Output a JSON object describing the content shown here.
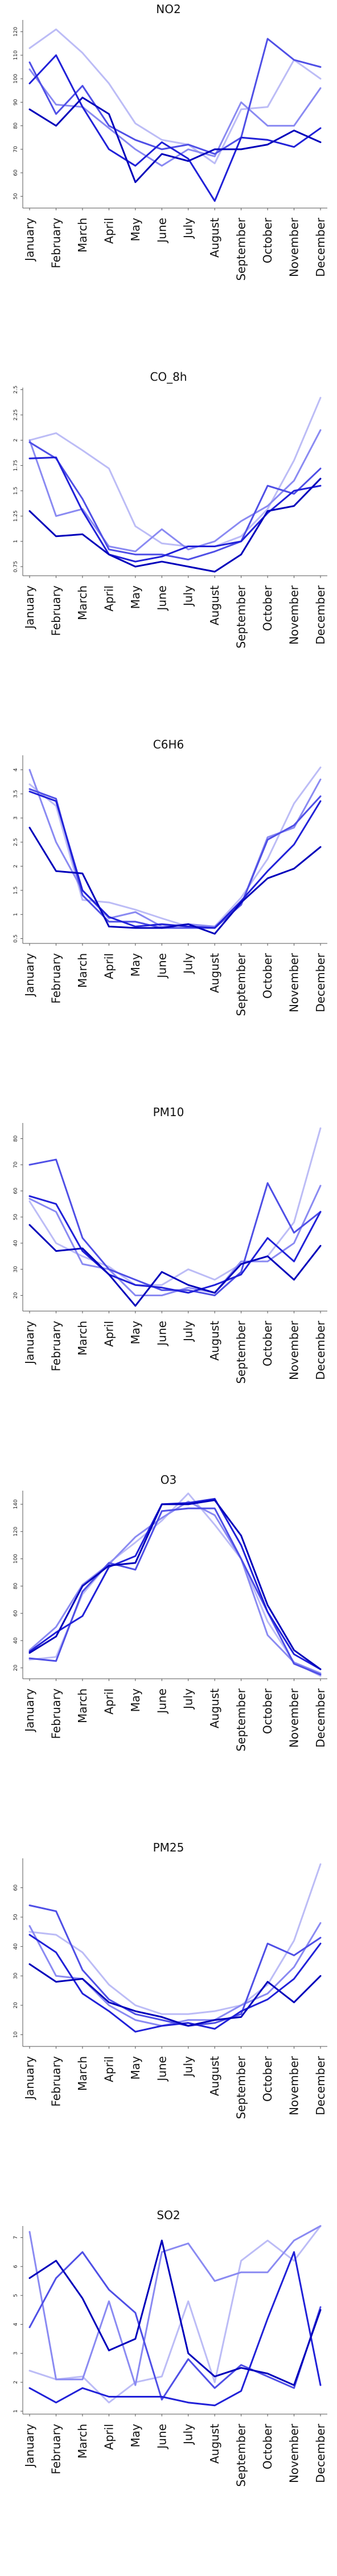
{
  "months": [
    "January",
    "February",
    "March",
    "April",
    "May",
    "June",
    "July",
    "August",
    "September",
    "October",
    "November",
    "December"
  ],
  "series_colors": [
    "#bcbcf6",
    "#8a8af2",
    "#4f4fe6",
    "#2121d8",
    "#0000bb"
  ],
  "chart_data": [
    {
      "type": "line",
      "title": "NO2",
      "categories": [
        "January",
        "February",
        "March",
        "April",
        "May",
        "June",
        "July",
        "August",
        "September",
        "October",
        "November",
        "December"
      ],
      "ylim": [
        45,
        125
      ],
      "yticks": [
        50,
        60,
        70,
        80,
        90,
        100,
        110,
        120
      ],
      "series": [
        {
          "values": [
            113,
            121,
            111,
            98,
            81,
            74,
            72,
            64,
            87,
            88,
            108,
            100
          ]
        },
        {
          "values": [
            104,
            89,
            88,
            79,
            70,
            63,
            70,
            67,
            90,
            80,
            80,
            96
          ]
        },
        {
          "values": [
            107,
            85,
            97,
            80,
            74,
            70,
            72,
            68,
            75,
            117,
            108,
            105
          ]
        },
        {
          "values": [
            98,
            110,
            88,
            70,
            63,
            73,
            66,
            48,
            75,
            74,
            71,
            79
          ]
        },
        {
          "values": [
            87,
            80,
            92,
            85,
            56,
            68,
            65,
            70,
            70,
            72,
            78,
            73
          ]
        }
      ]
    },
    {
      "type": "line",
      "title": "CO_8h",
      "categories": [
        "January",
        "February",
        "March",
        "April",
        "May",
        "June",
        "July",
        "August",
        "September",
        "October",
        "November",
        "December"
      ],
      "ylim": [
        0.66,
        2.52
      ],
      "yticks": [
        0.75,
        1.0,
        1.25,
        1.5,
        1.75,
        2.0,
        2.25,
        2.5
      ],
      "series": [
        {
          "values": [
            2.0,
            2.07,
            1.9,
            1.72,
            1.15,
            0.98,
            0.95,
            0.95,
            1.05,
            1.32,
            1.8,
            2.42
          ]
        },
        {
          "values": [
            2.0,
            1.25,
            1.32,
            0.95,
            0.9,
            1.12,
            0.92,
            1.0,
            1.2,
            1.35,
            1.6,
            2.1
          ]
        },
        {
          "values": [
            1.98,
            1.82,
            1.42,
            0.92,
            0.87,
            0.87,
            0.82,
            0.9,
            1.0,
            1.55,
            1.47,
            1.72
          ]
        },
        {
          "values": [
            1.82,
            1.83,
            1.3,
            0.87,
            0.8,
            0.85,
            0.95,
            0.95,
            1.0,
            1.28,
            1.5,
            1.55
          ]
        },
        {
          "values": [
            1.3,
            1.05,
            1.07,
            0.87,
            0.75,
            0.8,
            0.75,
            0.7,
            0.87,
            1.3,
            1.35,
            1.62
          ]
        }
      ]
    },
    {
      "type": "line",
      "title": "C6H6",
      "categories": [
        "January",
        "February",
        "March",
        "April",
        "May",
        "June",
        "July",
        "August",
        "September",
        "October",
        "November",
        "December"
      ],
      "ylim": [
        0.4,
        4.3
      ],
      "yticks": [
        0.5,
        1.0,
        1.5,
        2.0,
        2.5,
        3.0,
        3.5,
        4.0
      ],
      "series": [
        {
          "values": [
            3.7,
            3.25,
            1.3,
            1.25,
            1.1,
            0.92,
            0.75,
            0.75,
            1.35,
            2.15,
            3.3,
            4.05
          ]
        },
        {
          "values": [
            4.0,
            2.5,
            1.5,
            0.92,
            1.05,
            0.75,
            0.8,
            0.75,
            1.2,
            2.6,
            2.8,
            3.8
          ]
        },
        {
          "values": [
            3.6,
            3.4,
            1.4,
            0.85,
            0.85,
            0.72,
            0.72,
            0.72,
            1.2,
            2.55,
            2.85,
            3.45
          ]
        },
        {
          "values": [
            3.55,
            3.35,
            1.5,
            0.95,
            0.75,
            0.8,
            0.75,
            0.72,
            1.28,
            1.9,
            2.45,
            3.35
          ]
        },
        {
          "values": [
            2.8,
            1.9,
            1.85,
            0.75,
            0.72,
            0.72,
            0.8,
            0.6,
            1.25,
            1.75,
            1.95,
            2.4
          ]
        }
      ]
    },
    {
      "type": "line",
      "title": "PM10",
      "categories": [
        "January",
        "February",
        "March",
        "April",
        "May",
        "June",
        "July",
        "August",
        "September",
        "October",
        "November",
        "December"
      ],
      "ylim": [
        14,
        86
      ],
      "yticks": [
        20,
        30,
        40,
        50,
        60,
        70,
        80
      ],
      "series": [
        {
          "values": [
            56,
            40,
            35,
            31,
            24,
            24,
            30,
            26,
            32,
            35,
            48,
            84
          ]
        },
        {
          "values": [
            57,
            52,
            32,
            30,
            20,
            20,
            23,
            21,
            33,
            33,
            40,
            62
          ]
        },
        {
          "values": [
            70,
            72,
            42,
            30,
            26,
            22,
            22,
            20,
            29,
            63,
            44,
            52
          ]
        },
        {
          "values": [
            58,
            55,
            37,
            28,
            24,
            23,
            21,
            24,
            28,
            42,
            33,
            52
          ]
        },
        {
          "values": [
            47,
            37,
            38,
            28,
            16,
            29,
            24,
            21,
            32,
            35,
            26,
            39
          ]
        }
      ]
    },
    {
      "type": "line",
      "title": "O3",
      "categories": [
        "January",
        "February",
        "March",
        "April",
        "May",
        "June",
        "July",
        "August",
        "September",
        "October",
        "November",
        "December"
      ],
      "ylim": [
        12,
        150
      ],
      "yticks": [
        20,
        40,
        60,
        80,
        100,
        120,
        140
      ],
      "series": [
        {
          "values": [
            26,
            28,
            74,
            97,
            112,
            128,
            148,
            125,
            100,
            54,
            24,
            14
          ]
        },
        {
          "values": [
            33,
            50,
            81,
            96,
            116,
            130,
            142,
            132,
            100,
            44,
            24,
            16
          ]
        },
        {
          "values": [
            27,
            25,
            76,
            97,
            92,
            135,
            137,
            137,
            100,
            61,
            23,
            15
          ]
        },
        {
          "values": [
            32,
            46,
            58,
            94,
            102,
            140,
            141,
            144,
            110,
            61,
            30,
            19
          ]
        },
        {
          "values": [
            31,
            43,
            80,
            95,
            97,
            140,
            140,
            143,
            117,
            66,
            33,
            19
          ]
        }
      ]
    },
    {
      "type": "line",
      "title": "PM25",
      "categories": [
        "January",
        "February",
        "March",
        "April",
        "May",
        "June",
        "July",
        "August",
        "September",
        "October",
        "November",
        "December"
      ],
      "ylim": [
        6,
        70
      ],
      "yticks": [
        10,
        20,
        30,
        40,
        50,
        60
      ],
      "series": [
        {
          "values": [
            45,
            44,
            38,
            27,
            20,
            17,
            17,
            18,
            20,
            27,
            42,
            68
          ]
        },
        {
          "values": [
            47,
            30,
            29,
            20,
            15,
            13,
            15,
            15,
            20,
            24,
            33,
            48
          ]
        },
        {
          "values": [
            54,
            52,
            32,
            22,
            17,
            15,
            13,
            14,
            17,
            41,
            37,
            43
          ]
        },
        {
          "values": [
            44,
            38,
            24,
            18,
            11,
            13,
            14,
            12,
            18,
            22,
            29,
            41
          ]
        },
        {
          "values": [
            34,
            28,
            29,
            21,
            18,
            16,
            13,
            15,
            16,
            28,
            21,
            30
          ]
        }
      ]
    },
    {
      "type": "line",
      "title": "SO2",
      "categories": [
        "January",
        "February",
        "March",
        "April",
        "May",
        "June",
        "July",
        "August",
        "September",
        "October",
        "November",
        "December"
      ],
      "ylim": [
        0.9,
        7.4
      ],
      "yticks": [
        1,
        2,
        3,
        4,
        5,
        6,
        7
      ],
      "series": [
        {
          "values": [
            2.4,
            2.1,
            2.2,
            1.3,
            2.0,
            2.2,
            4.8,
            2.0,
            6.2,
            6.9,
            6.2,
            7.4
          ]
        },
        {
          "values": [
            7.2,
            2.1,
            2.1,
            4.8,
            1.9,
            6.5,
            6.8,
            5.5,
            5.8,
            5.8,
            6.9,
            7.4
          ]
        },
        {
          "values": [
            3.9,
            5.6,
            6.5,
            5.2,
            4.4,
            1.4,
            2.8,
            1.8,
            2.6,
            2.2,
            1.8,
            4.6
          ]
        },
        {
          "values": [
            1.8,
            1.3,
            1.8,
            1.5,
            1.5,
            1.5,
            1.3,
            1.2,
            1.7,
            4.2,
            6.5,
            1.9
          ]
        },
        {
          "values": [
            5.6,
            6.2,
            4.9,
            3.1,
            3.5,
            6.9,
            3.0,
            2.2,
            2.5,
            2.3,
            1.9,
            4.5
          ]
        }
      ]
    }
  ]
}
